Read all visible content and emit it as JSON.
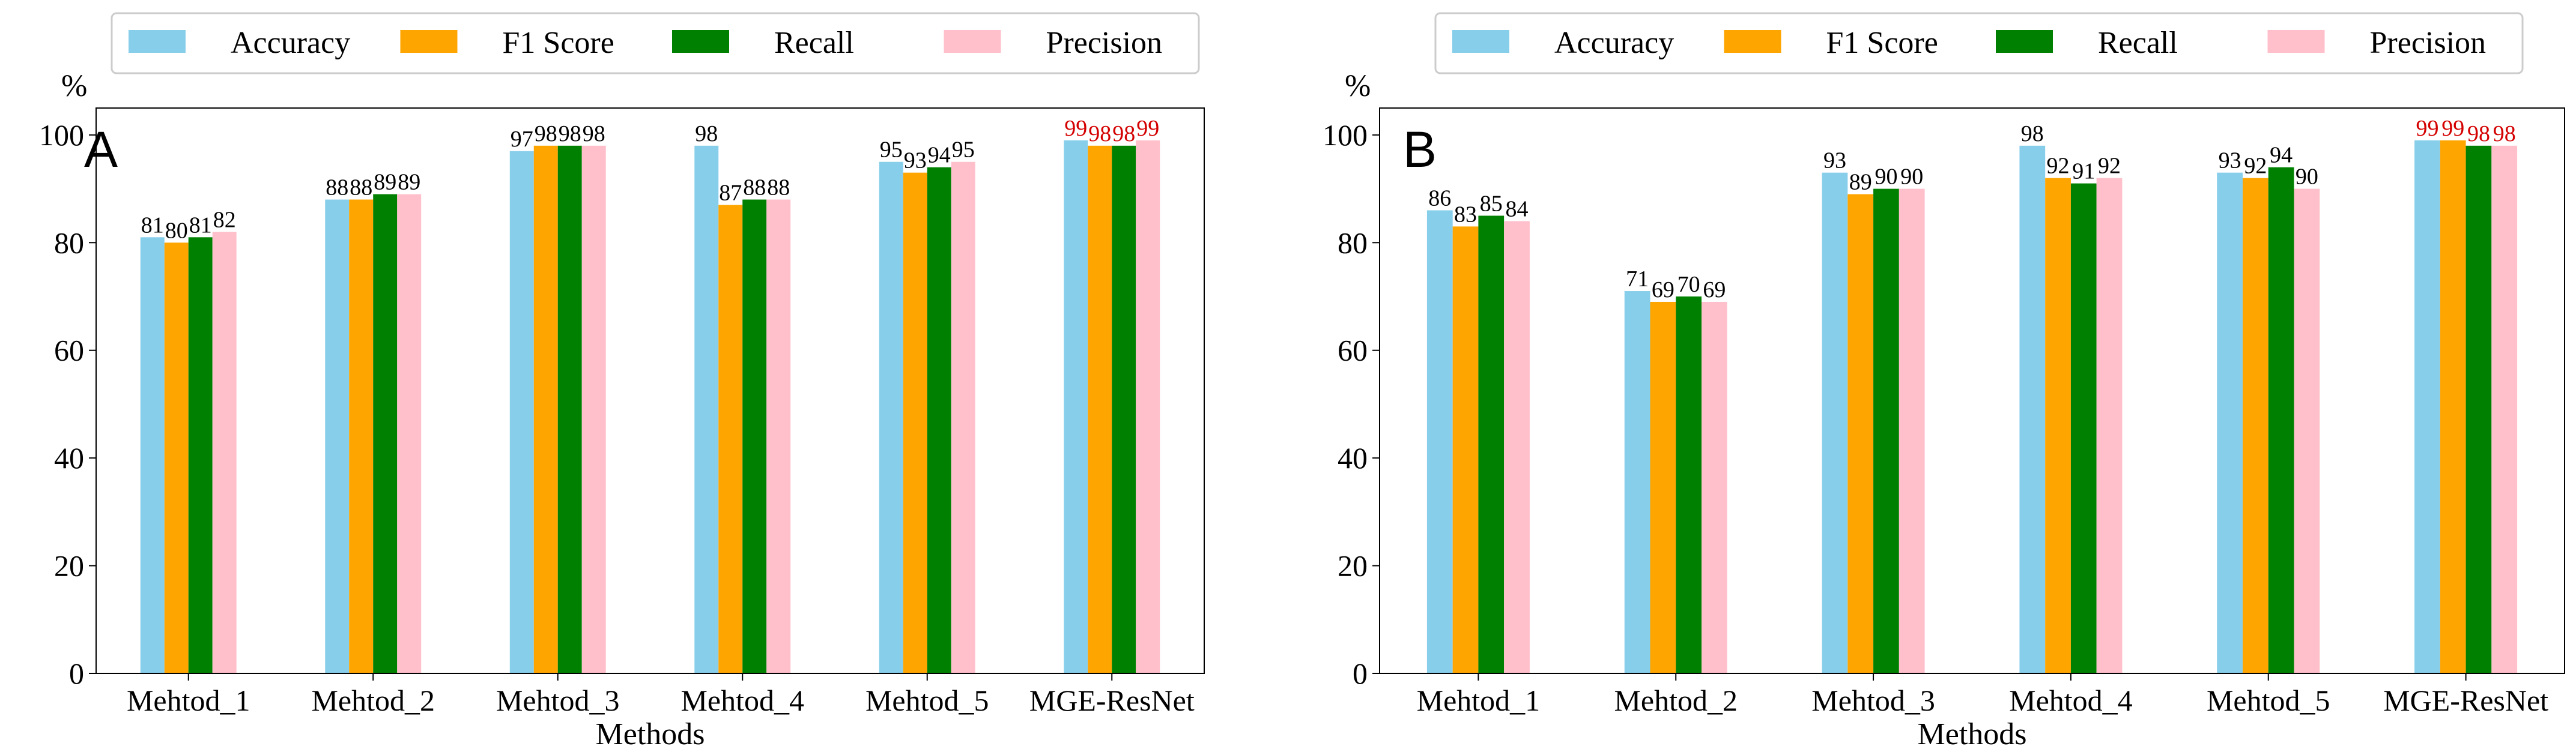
{
  "chart_data": [
    {
      "type": "bar",
      "panel_label": "A",
      "unit_label": "%",
      "xlabel": "Methods",
      "ylabel": "",
      "ylim": [
        0,
        105
      ],
      "yticks": [
        0,
        20,
        40,
        60,
        80,
        100
      ],
      "ytick_labels": [
        "0",
        "20",
        "40",
        "60",
        "80",
        "100"
      ],
      "grid": false,
      "legend_position": "top-center",
      "categories": [
        "Mehtod_1",
        "Mehtod_2",
        "Mehtod_3",
        "Mehtod_4",
        "Mehtod_5",
        "MGE-ResNet"
      ],
      "series": [
        {
          "name": "Accuracy",
          "values": [
            81,
            88,
            97,
            98,
            95,
            99
          ],
          "labels": [
            "81",
            "88",
            "97",
            "98",
            "95",
            "99"
          ]
        },
        {
          "name": "F1 Score",
          "values": [
            80,
            88,
            98,
            87,
            93,
            98
          ],
          "labels": [
            "80",
            "88",
            "98",
            "87",
            "93",
            "98"
          ]
        },
        {
          "name": "Recall",
          "values": [
            81,
            89,
            98,
            88,
            94,
            98
          ],
          "labels": [
            "81",
            "89",
            "98",
            "88",
            "94",
            "98"
          ]
        },
        {
          "name": "Precision",
          "values": [
            82,
            89,
            98,
            88,
            95,
            99
          ],
          "labels": [
            "82",
            "89",
            "98",
            "88",
            "95",
            "99"
          ]
        }
      ],
      "highlight_category": "MGE-ResNet"
    },
    {
      "type": "bar",
      "panel_label": "B",
      "unit_label": "%",
      "xlabel": "Methods",
      "ylabel": "",
      "ylim": [
        0,
        105
      ],
      "yticks": [
        0,
        20,
        40,
        60,
        80,
        100
      ],
      "ytick_labels": [
        "0",
        "20",
        "40",
        "60",
        "80",
        "100"
      ],
      "grid": false,
      "legend_position": "top-center",
      "categories": [
        "Mehtod_1",
        "Mehtod_2",
        "Mehtod_3",
        "Mehtod_4",
        "Mehtod_5",
        "MGE-ResNet"
      ],
      "series": [
        {
          "name": "Accuracy",
          "values": [
            86,
            71,
            93,
            98,
            93,
            99
          ],
          "labels": [
            "86",
            "71",
            "93",
            "98",
            "93",
            "99"
          ]
        },
        {
          "name": "F1 Score",
          "values": [
            83,
            69,
            89,
            92,
            92,
            99
          ],
          "labels": [
            "83",
            "69",
            "89",
            "92",
            "92",
            "99"
          ]
        },
        {
          "name": "Recall",
          "values": [
            85,
            70,
            90,
            91,
            94,
            98
          ],
          "labels": [
            "85",
            "70",
            "90",
            "91",
            "94",
            "98"
          ]
        },
        {
          "name": "Precision",
          "values": [
            84,
            69,
            90,
            92,
            90,
            98
          ],
          "labels": [
            "84",
            "69",
            "90",
            "92",
            "90",
            "98"
          ]
        }
      ],
      "highlight_category": "MGE-ResNet"
    }
  ],
  "colors": {
    "series": [
      "#87ceeb",
      "#ffa500",
      "#008000",
      "#ffc0cb"
    ],
    "axis": "#000000",
    "label": "#000000",
    "highlight_label": "#d40000",
    "legend_border": "#cccccc"
  }
}
